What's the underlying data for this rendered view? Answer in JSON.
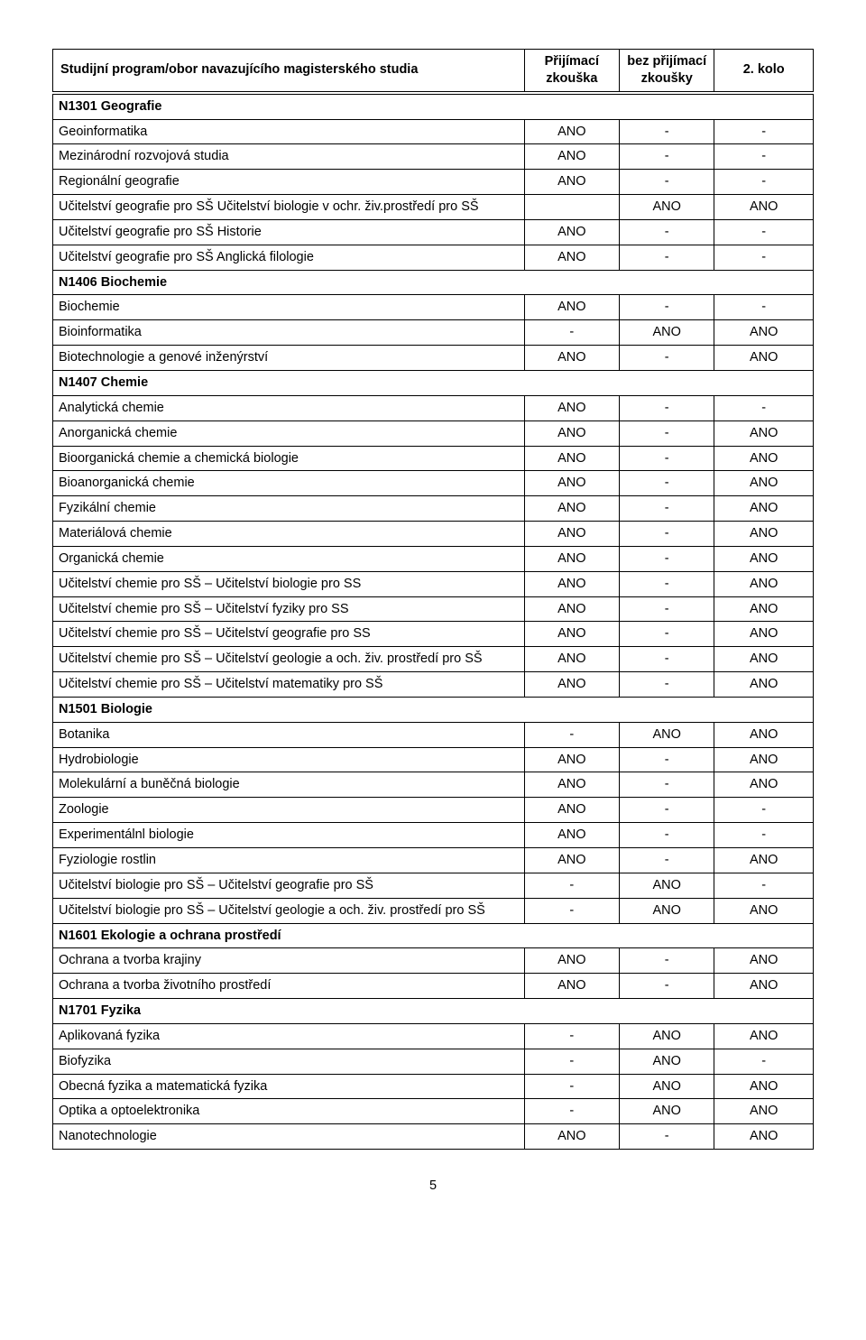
{
  "page_number": "5",
  "colors": {
    "text": "#000000",
    "border": "#000000",
    "background": "#ffffff"
  },
  "table": {
    "headers": {
      "program": "Studijní program/obor navazujícího magisterského studia",
      "exam": "Přijímací zkouška",
      "noexam": "bez přijímací zkoušky",
      "round2": "2. kolo"
    },
    "sections": [
      {
        "title": "N1301 Geografie",
        "rows": [
          {
            "label": "Geoinformatika",
            "c1": "ANO",
            "c2": "-",
            "c3": "-"
          },
          {
            "label": "Mezinárodní rozvojová studia",
            "c1": "ANO",
            "c2": "-",
            "c3": "-"
          },
          {
            "label": "Regionální geografie",
            "c1": "ANO",
            "c2": "-",
            "c3": "-"
          },
          {
            "label": "Učitelství geografie pro SŠ Učitelství biologie v ochr. živ.prostředí pro SŠ",
            "c1": "",
            "c2": "ANO",
            "c3": "ANO"
          },
          {
            "label": "Učitelství geografie pro SŠ Historie",
            "c1": "ANO",
            "c2": "-",
            "c3": "-"
          },
          {
            "label": "Učitelství geografie pro SŠ Anglická filologie",
            "c1": "ANO",
            "c2": "-",
            "c3": "-"
          }
        ]
      },
      {
        "title": "N1406 Biochemie",
        "rows": [
          {
            "label": "Biochemie",
            "c1": "ANO",
            "c2": "-",
            "c3": "-"
          },
          {
            "label": "Bioinformatika",
            "c1": "-",
            "c2": "ANO",
            "c3": "ANO"
          },
          {
            "label": "Biotechnologie a genové inženýrství",
            "c1": "ANO",
            "c2": "-",
            "c3": "ANO"
          }
        ]
      },
      {
        "title": "N1407 Chemie",
        "rows": [
          {
            "label": "Analytická chemie",
            "c1": "ANO",
            "c2": "-",
            "c3": "-"
          },
          {
            "label": "Anorganická chemie",
            "c1": "ANO",
            "c2": "-",
            "c3": "ANO"
          },
          {
            "label": "Bioorganická chemie a chemická biologie",
            "c1": "ANO",
            "c2": "-",
            "c3": "ANO"
          },
          {
            "label": "Bioanorganická chemie",
            "c1": "ANO",
            "c2": "-",
            "c3": "ANO"
          },
          {
            "label": "Fyzikální chemie",
            "c1": "ANO",
            "c2": "-",
            "c3": "ANO"
          },
          {
            "label": "Materiálová chemie",
            "c1": "ANO",
            "c2": "-",
            "c3": "ANO"
          },
          {
            "label": "Organická chemie",
            "c1": "ANO",
            "c2": "-",
            "c3": "ANO"
          },
          {
            "label": "Učitelství chemie pro SŠ – Učitelství biologie pro SS",
            "c1": "ANO",
            "c2": "-",
            "c3": "ANO"
          },
          {
            "label": "Učitelství chemie pro SŠ – Učitelství fyziky pro SS",
            "c1": "ANO",
            "c2": "-",
            "c3": "ANO"
          },
          {
            "label": "Učitelství chemie pro SŠ – Učitelství geografie pro SS",
            "c1": "ANO",
            "c2": "-",
            "c3": "ANO"
          },
          {
            "label": "Učitelství chemie pro SŠ – Učitelství geologie a och. živ. prostředí pro SŠ",
            "c1": "ANO",
            "c2": "-",
            "c3": "ANO"
          },
          {
            "label": "Učitelství chemie pro SŠ – Učitelství matematiky pro SŠ",
            "c1": "ANO",
            "c2": "-",
            "c3": "ANO"
          }
        ]
      },
      {
        "title": "N1501 Biologie",
        "rows": [
          {
            "label": "Botanika",
            "c1": "-",
            "c2": "ANO",
            "c3": "ANO"
          },
          {
            "label": "Hydrobiologie",
            "c1": "ANO",
            "c2": "-",
            "c3": "ANO"
          },
          {
            "label": "Molekulární a buněčná biologie",
            "c1": "ANO",
            "c2": "-",
            "c3": "ANO"
          },
          {
            "label": "Zoologie",
            "c1": "ANO",
            "c2": "-",
            "c3": "-"
          },
          {
            "label": "Experimentálnl biologie",
            "c1": "ANO",
            "c2": "-",
            "c3": "-"
          },
          {
            "label": "Fyziologie rostlin",
            "c1": "ANO",
            "c2": "-",
            "c3": "ANO"
          },
          {
            "label": "Učitelství biologie pro SŠ – Učitelství geografie pro SŠ",
            "c1": "-",
            "c2": "ANO",
            "c3": "-"
          },
          {
            "label": "Učitelství biologie pro SŠ – Učitelství geologie a och. živ. prostředí pro SŠ",
            "c1": "-",
            "c2": "ANO",
            "c3": "ANO"
          }
        ]
      },
      {
        "title": "N1601 Ekologie a ochrana prostředí",
        "rows": [
          {
            "label": "Ochrana a tvorba krajiny",
            "c1": "ANO",
            "c2": "-",
            "c3": "ANO"
          },
          {
            "label": "Ochrana a tvorba životního prostředí",
            "c1": "ANO",
            "c2": "-",
            "c3": "ANO"
          }
        ]
      },
      {
        "title": "N1701 Fyzika",
        "rows": [
          {
            "label": "Aplikovaná fyzika",
            "c1": "-",
            "c2": "ANO",
            "c3": "ANO"
          },
          {
            "label": "Biofyzika",
            "c1": "-",
            "c2": "ANO",
            "c3": "-"
          },
          {
            "label": "Obecná fyzika a matematická fyzika",
            "c1": "-",
            "c2": "ANO",
            "c3": "ANO"
          },
          {
            "label": "Optika a optoelektronika",
            "c1": "-",
            "c2": "ANO",
            "c3": "ANO"
          },
          {
            "label": "Nanotechnologie",
            "c1": "ANO",
            "c2": "-",
            "c3": "ANO"
          }
        ]
      }
    ]
  }
}
